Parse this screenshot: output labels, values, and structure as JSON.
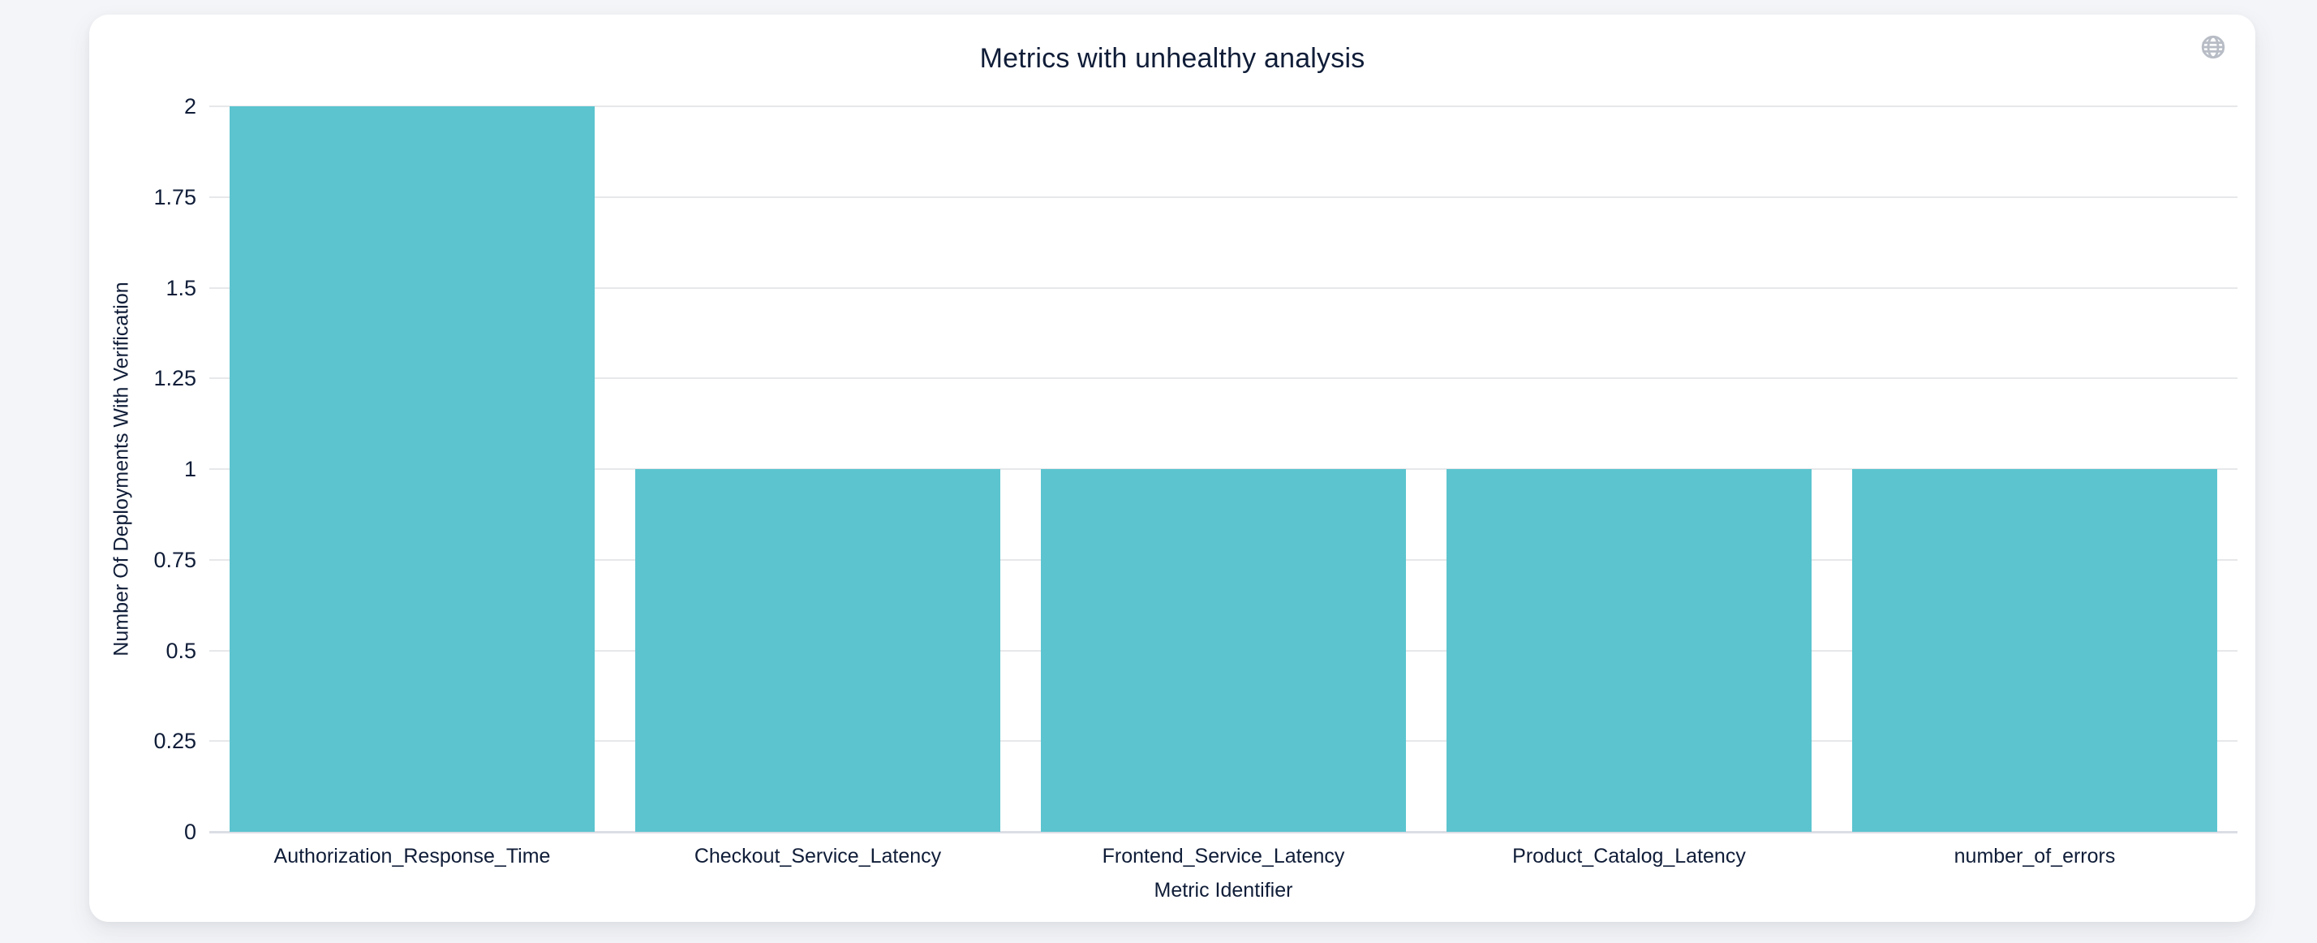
{
  "page": {
    "background_color": "#f4f5f8"
  },
  "card": {
    "background_color": "#ffffff"
  },
  "toolbar": {
    "globe_icon": "globe-icon",
    "icon_color": "#b7bcc5"
  },
  "chart_data": {
    "type": "bar",
    "title": "Metrics with unhealthy analysis",
    "categories": [
      "Authorization_Response_Time",
      "Checkout_Service_Latency",
      "Frontend_Service_Latency",
      "Product_Catalog_Latency",
      "number_of_errors"
    ],
    "values": [
      2,
      1,
      1,
      1,
      1
    ],
    "xlabel": "Metric Identifier",
    "ylabel": "Number Of Deployments With Verification",
    "ylim": [
      0,
      2
    ],
    "yticks": [
      0,
      0.25,
      0.5,
      0.75,
      1,
      1.25,
      1.5,
      1.75,
      2
    ],
    "grid": true,
    "legend_position": "none",
    "bar_color": "#5bc4cf",
    "grid_color": "#e7e8ea",
    "zero_line_color": "#dcdee6",
    "text_color": "#101d38"
  }
}
